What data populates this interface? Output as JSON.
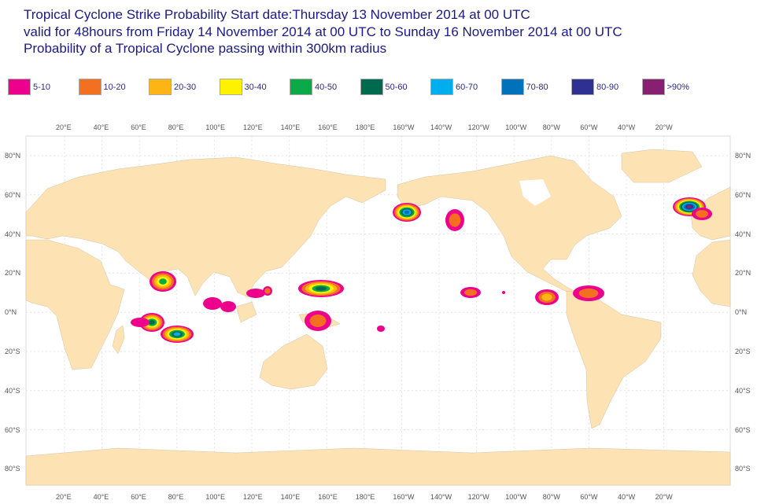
{
  "title": {
    "line1": "Tropical Cyclone Strike Probability Start date:Thursday 13 November 2014 at 00 UTC",
    "line2": "valid for 48hours from Friday 14 November 2014 at 00 UTC to  Sunday 16 November 2014 at 00 UTC",
    "line3": "Probability of a Tropical Cyclone passing within 300km radius"
  },
  "legend": [
    {
      "label": "5-10",
      "color": "#ec008c"
    },
    {
      "label": "10-20",
      "color": "#f37021"
    },
    {
      "label": "20-30",
      "color": "#fdb515"
    },
    {
      "label": "30-40",
      "color": "#fff200"
    },
    {
      "label": "40-50",
      "color": "#0aaa4b"
    },
    {
      "label": "50-60",
      "color": "#006a4e"
    },
    {
      "label": "60-70",
      "color": "#00aeef"
    },
    {
      "label": "70-80",
      "color": "#0072bc"
    },
    {
      "label": "80-90",
      "color": "#2e3192"
    },
    {
      "label": ">90%",
      "color": "#87206f"
    }
  ],
  "lon_labels": [
    "20°E",
    "40°E",
    "60°E",
    "80°E",
    "100°E",
    "120°E",
    "140°E",
    "160°E",
    "180°E",
    "160°W",
    "140°W",
    "120°W",
    "100°W",
    "80°W",
    "60°W",
    "40°W",
    "20°W"
  ],
  "lat_labels": [
    "80°N",
    "60°N",
    "40°N",
    "20°N",
    "0°N",
    "20°S",
    "40°S",
    "60°S",
    "80°S"
  ],
  "colors": {
    "land": "#fde2b3",
    "grid": "#dddddd"
  }
}
